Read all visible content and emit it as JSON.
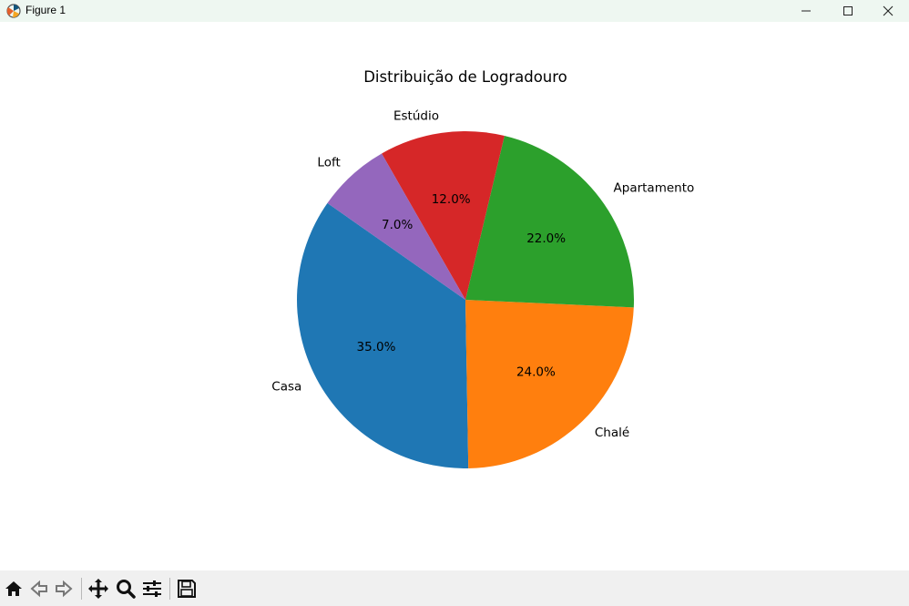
{
  "window": {
    "title": "Figure 1",
    "icons": [
      "matplotlib-icon",
      "minimize-icon",
      "maximize-icon",
      "close-icon"
    ]
  },
  "toolbar": {
    "buttons": [
      "home-icon",
      "back-icon",
      "forward-icon",
      "pan-icon",
      "zoom-icon",
      "configure-subplots-icon",
      "save-icon"
    ]
  },
  "chart_data": {
    "type": "pie",
    "title": "Distribuição de Logradouro",
    "labels": [
      "Casa",
      "Chalé",
      "Apartamento",
      "Estúdio",
      "Loft"
    ],
    "values": [
      35.0,
      24.0,
      22.0,
      12.0,
      7.0
    ],
    "autopct": [
      "35.0%",
      "24.0%",
      "22.0%",
      "12.0%",
      "7.0%"
    ],
    "colors": [
      "#1f77b4",
      "#ff7f0e",
      "#2ca02c",
      "#d62728",
      "#9467bd"
    ],
    "start_angle_deg": 145,
    "direction": "counterclockwise"
  }
}
